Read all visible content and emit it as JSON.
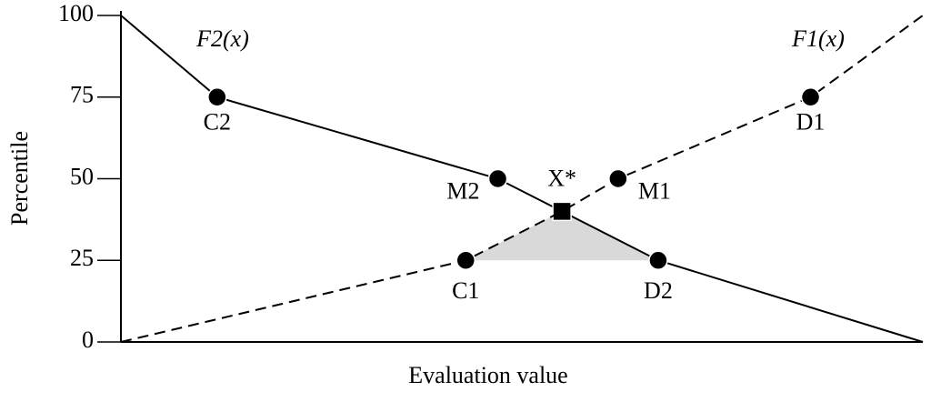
{
  "chart_data": {
    "type": "line",
    "xlabel": "Evaluation value",
    "ylabel": "Percentile",
    "xlim": [
      0,
      100
    ],
    "ylim": [
      0,
      100
    ],
    "yticks": [
      0,
      25,
      50,
      75,
      100
    ],
    "series": [
      {
        "name": "F2(x)",
        "color": "#000000",
        "dash": false,
        "x": [
          0,
          12,
          47,
          55,
          67,
          100
        ],
        "values": [
          100,
          75,
          50,
          40,
          25,
          0
        ],
        "markers": [
          "none",
          "circle",
          "circle",
          "square",
          "circle",
          "none"
        ],
        "point_labels": [
          null,
          "C2",
          "M2",
          "X*",
          "D2",
          null
        ]
      },
      {
        "name": "F1(x)",
        "color": "#000000",
        "dash": true,
        "x": [
          0,
          43,
          55,
          62,
          86,
          100
        ],
        "values": [
          0,
          25,
          40,
          50,
          75,
          100
        ],
        "markers": [
          "none",
          "circle",
          "none",
          "circle",
          "circle",
          "none"
        ],
        "point_labels": [
          null,
          "C1",
          null,
          "M1",
          "D1",
          null
        ]
      }
    ]
  }
}
